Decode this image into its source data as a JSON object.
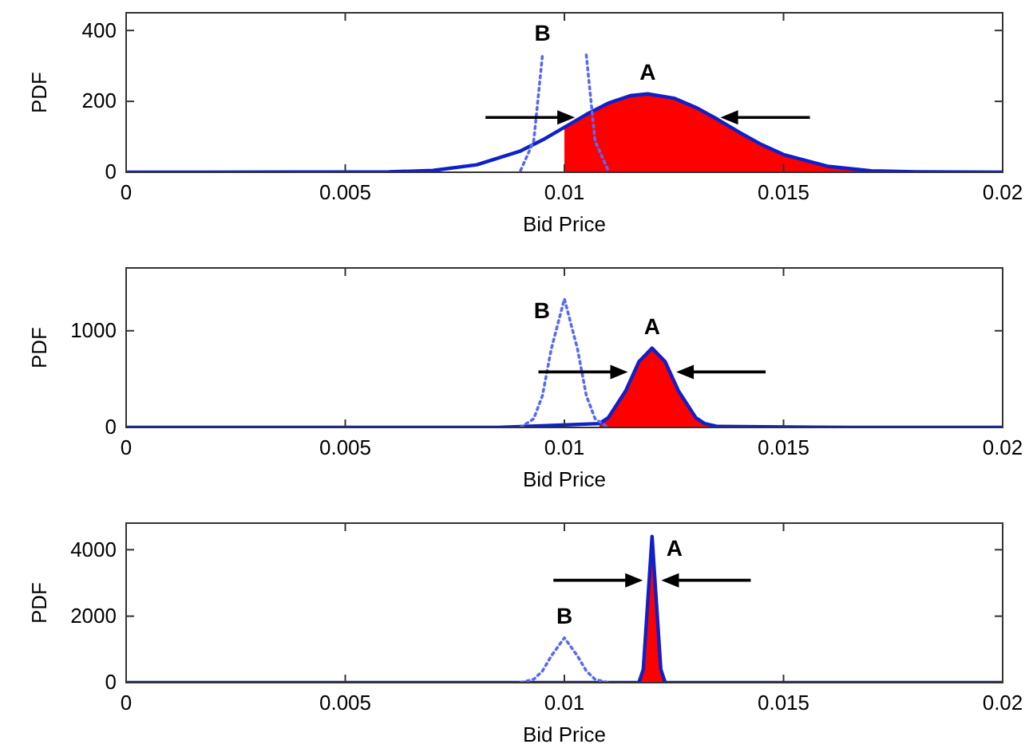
{
  "chart_data": [
    {
      "type": "line",
      "xlabel": "Bid Price",
      "ylabel": "PDF",
      "xlim": [
        0,
        0.02
      ],
      "xticks": [
        0,
        0.005,
        0.01,
        0.015,
        0.02
      ],
      "ylim": [
        0,
        450
      ],
      "yticks": [
        0,
        200,
        400
      ],
      "series": [
        {
          "type": "area",
          "color": "#ff0000",
          "x": [
            0.01,
            0.0105,
            0.011,
            0.0115,
            0.0119,
            0.0125,
            0.013,
            0.0135,
            0.014,
            0.0145,
            0.015,
            0.016,
            0.017,
            0.018
          ],
          "values": [
            127,
            163,
            195,
            216,
            221,
            209,
            183,
            149,
            112,
            78,
            50,
            17,
            4,
            1
          ]
        },
        {
          "type": "line",
          "color": "#1020c8",
          "line_style": "solid",
          "x": [
            0,
            0.006,
            0.007,
            0.008,
            0.009,
            0.0095,
            0.01,
            0.0105,
            0.011,
            0.0115,
            0.0119,
            0.0125,
            0.013,
            0.0135,
            0.014,
            0.0145,
            0.015,
            0.016,
            0.017,
            0.018,
            0.02
          ],
          "values": [
            0,
            1,
            5,
            21,
            60,
            91,
            127,
            163,
            195,
            216,
            221,
            209,
            183,
            149,
            112,
            78,
            50,
            17,
            4,
            1,
            0
          ]
        },
        {
          "type": "line",
          "color": "#5a6af0",
          "line_style": "dotted",
          "x": [
            0.009,
            0.0093,
            0.0095,
            0.0097,
            0.01,
            0.0103,
            0.0105,
            0.0107,
            0.011
          ],
          "values": [
            5,
            88,
            331,
            null,
            null,
            null,
            331,
            88,
            5
          ]
        }
      ],
      "annotations": [
        "A",
        "B"
      ]
    },
    {
      "type": "line",
      "xlabel": "Bid Price",
      "ylabel": "PDF",
      "xlim": [
        0,
        0.02
      ],
      "xticks": [
        0,
        0.005,
        0.01,
        0.015,
        0.02
      ],
      "ylim": [
        0,
        1650
      ],
      "yticks": [
        0,
        1000
      ],
      "series": [
        {
          "type": "area",
          "color": "#ff0000",
          "x": [
            0.0108,
            0.011,
            0.0114,
            0.0117,
            0.012,
            0.0123,
            0.0126,
            0.013,
            0.0132,
            0.0135
          ],
          "values": [
            40,
            100,
            380,
            680,
            820,
            680,
            380,
            100,
            40,
            10
          ]
        },
        {
          "type": "line",
          "color": "#1020c8",
          "line_style": "solid",
          "x": [
            0,
            0.0085,
            0.0108,
            0.011,
            0.0114,
            0.0117,
            0.012,
            0.0123,
            0.0126,
            0.013,
            0.0132,
            0.0135,
            0.0165,
            0.02
          ],
          "values": [
            0,
            0,
            40,
            100,
            380,
            680,
            820,
            680,
            380,
            100,
            40,
            10,
            0,
            0
          ]
        },
        {
          "type": "line",
          "color": "#5a6af0",
          "line_style": "dotted",
          "x": [
            0.009,
            0.0093,
            0.0095,
            0.0097,
            0.01,
            0.0103,
            0.0105,
            0.0107,
            0.011
          ],
          "values": [
            0,
            90,
            330,
            810,
            1330,
            810,
            330,
            90,
            0
          ]
        }
      ],
      "annotations": [
        "A",
        "B"
      ]
    },
    {
      "type": "line",
      "xlabel": "Bid Price",
      "ylabel": "PDF",
      "xlim": [
        0,
        0.02
      ],
      "xticks": [
        0,
        0.005,
        0.01,
        0.015,
        0.02
      ],
      "ylim": [
        0,
        4800
      ],
      "yticks": [
        0,
        2000,
        4000
      ],
      "series": [
        {
          "type": "area",
          "color": "#ff0000",
          "x": [
            0.0117,
            0.0118,
            0.0119,
            0.012,
            0.0121,
            0.0122,
            0.0123
          ],
          "values": [
            0,
            400,
            2400,
            4400,
            2400,
            400,
            0
          ]
        },
        {
          "type": "line",
          "color": "#1020c8",
          "line_style": "solid",
          "x": [
            0,
            0.0113,
            0.0117,
            0.0118,
            0.0119,
            0.012,
            0.0121,
            0.0122,
            0.0123,
            0.0128,
            0.02
          ],
          "values": [
            0,
            0,
            0,
            400,
            2400,
            4400,
            2400,
            400,
            0,
            0,
            0
          ]
        },
        {
          "type": "line",
          "color": "#5a6af0",
          "line_style": "dotted",
          "x": [
            0.009,
            0.0093,
            0.0095,
            0.0097,
            0.01,
            0.0103,
            0.0105,
            0.0107,
            0.011
          ],
          "values": [
            0,
            100,
            350,
            800,
            1350,
            800,
            350,
            100,
            0
          ]
        }
      ],
      "annotations": [
        "A",
        "B"
      ]
    }
  ]
}
